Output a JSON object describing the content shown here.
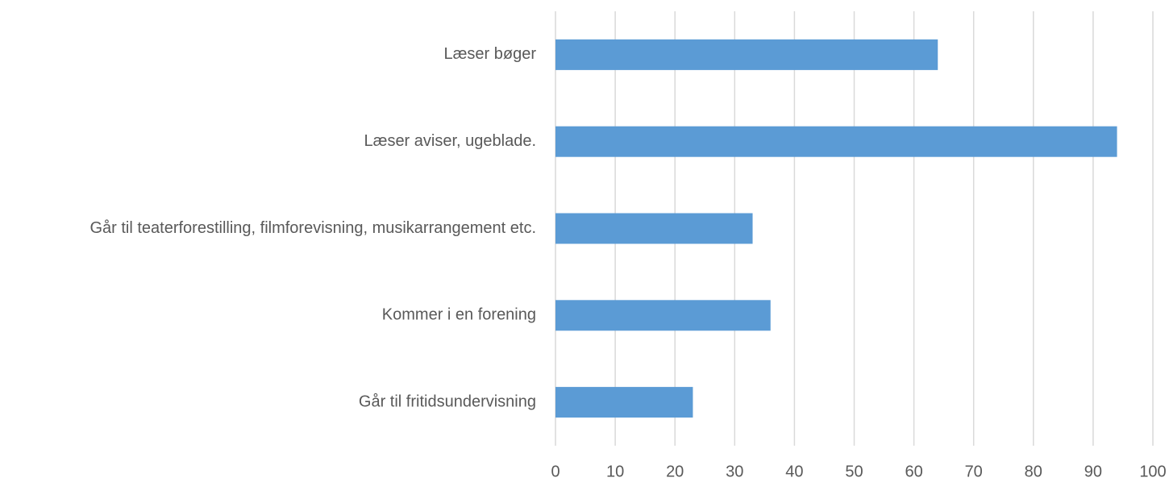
{
  "chart_data": {
    "type": "barh",
    "categories": [
      "Læser bøger",
      "Læser aviser, ugeblade.",
      "Går til teaterforestilling, filmforevisning, musikarrangement etc.",
      "Kommer i en forening",
      "Går til fritidsundervisning"
    ],
    "values": [
      64,
      94,
      33,
      36,
      23
    ],
    "color": "#5b9bd5",
    "xlim": [
      0,
      100
    ],
    "xticks": [
      0,
      10,
      20,
      30,
      40,
      50,
      60,
      70,
      80,
      90,
      100
    ],
    "grid": true
  }
}
